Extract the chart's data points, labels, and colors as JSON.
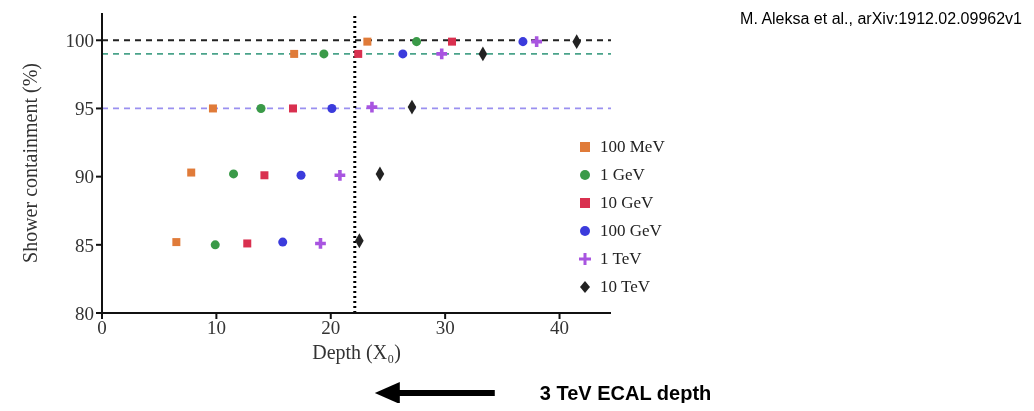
{
  "chart_data": {
    "type": "scatter",
    "xlabel": "Depth (X₀)",
    "ylabel": "Shower containment (%)",
    "xlim": [
      0,
      44.5
    ],
    "xticks": [
      0,
      10,
      20,
      30,
      40
    ],
    "ylim": [
      80,
      102
    ],
    "yticks": [
      80,
      85,
      90,
      95,
      100
    ],
    "grid": false,
    "legend": "right",
    "series": [
      {
        "name": "100 MeV",
        "color": "#e07b39",
        "marker": "square",
        "x": [
          6.5,
          7.8,
          9.7,
          16.8,
          23.2
        ],
        "values": [
          85.2,
          90.3,
          95,
          99,
          99.9
        ]
      },
      {
        "name": "1 GeV",
        "color": "#3a9a48",
        "marker": "circle",
        "x": [
          9.9,
          11.5,
          13.9,
          19.4,
          27.5
        ],
        "values": [
          85,
          90.2,
          95,
          99,
          99.9
        ]
      },
      {
        "name": "10 GeV",
        "color": "#d9304f",
        "marker": "square",
        "x": [
          12.7,
          14.2,
          16.7,
          22.4,
          30.6
        ],
        "values": [
          85.1,
          90.1,
          95,
          99,
          99.9
        ]
      },
      {
        "name": "100 GeV",
        "color": "#3b3bdc",
        "marker": "circle",
        "x": [
          15.8,
          17.4,
          20.1,
          26.3,
          36.8
        ],
        "values": [
          85.2,
          90.1,
          95,
          99,
          99.9
        ]
      },
      {
        "name": "1 TeV",
        "color": "#a855e0",
        "marker": "cross",
        "x": [
          19.1,
          20.8,
          23.6,
          29.7,
          38.0
        ],
        "values": [
          85.1,
          90.1,
          95.1,
          99,
          99.9
        ]
      },
      {
        "name": "10 TeV",
        "color": "#222222",
        "marker": "diamond",
        "x": [
          22.5,
          24.3,
          27.1,
          33.3,
          41.5
        ],
        "values": [
          85.3,
          90.2,
          95.1,
          99,
          99.9
        ]
      }
    ],
    "ref_lines": [
      {
        "axis": "y",
        "value": 100,
        "color": "#222222",
        "line_style": "dashed"
      },
      {
        "axis": "y",
        "value": 99,
        "color": "#4aa38a",
        "line_style": "dashed"
      },
      {
        "axis": "y",
        "value": 95,
        "color": "#9a90f0",
        "line_style": "dashed"
      },
      {
        "axis": "x",
        "value": 22.1,
        "color": "#000000",
        "line_style": "dotted",
        "label": "3 TeV ECAL depth"
      }
    ],
    "annotations": [
      "M. Aleksa et al., arXiv:1912.02.09962v1"
    ]
  }
}
